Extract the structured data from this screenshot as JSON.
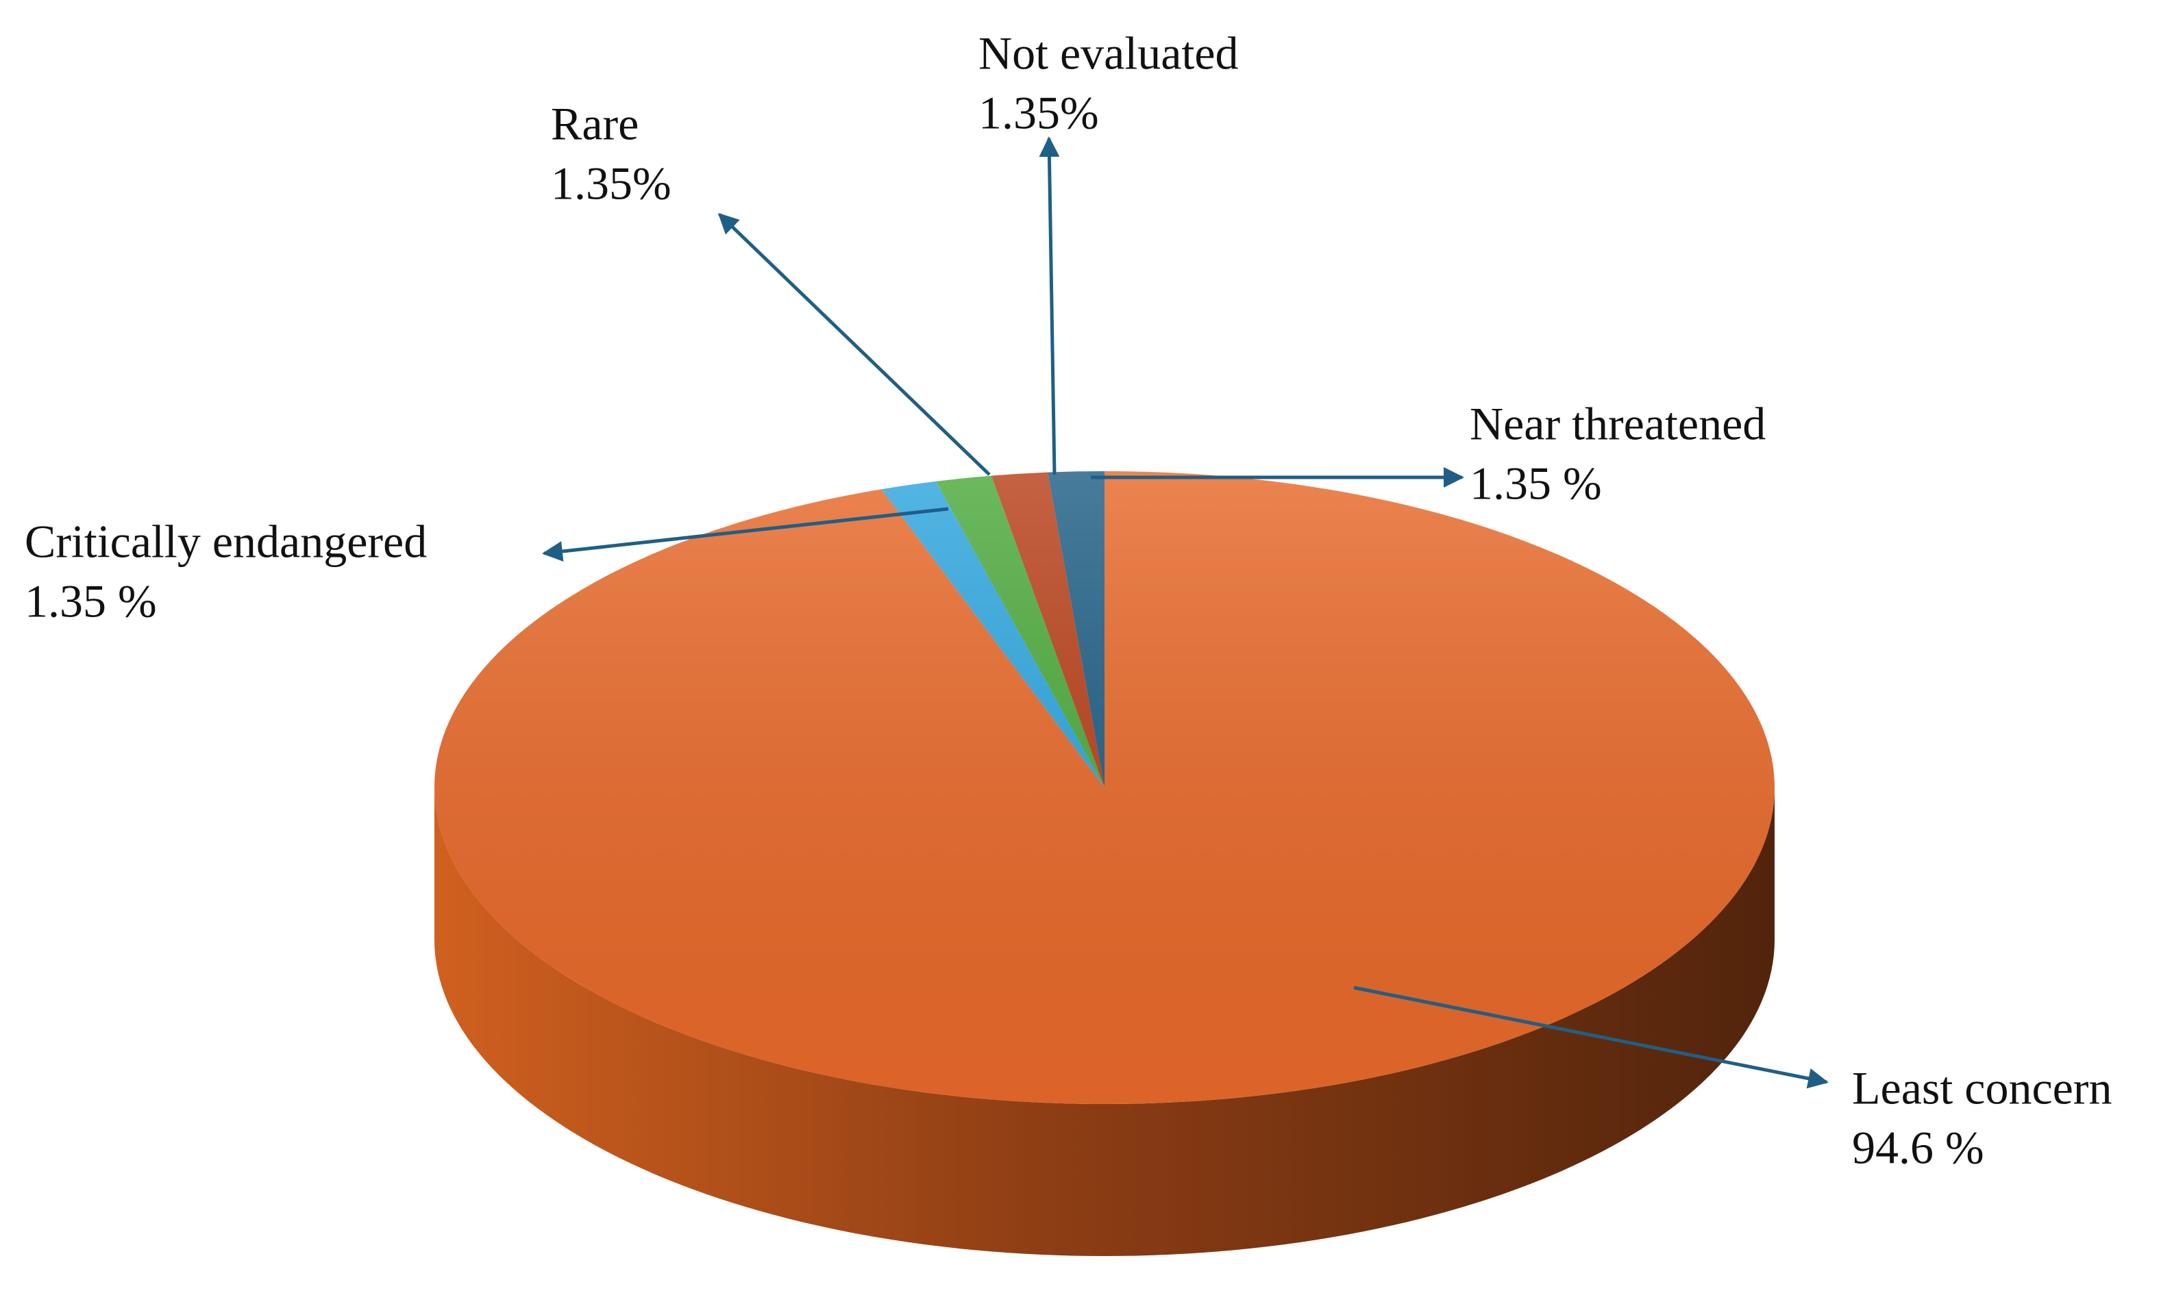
{
  "chart_data": {
    "type": "pie",
    "categories": [
      "Least concern",
      "Critically endangered",
      "Rare",
      "Not evaluated",
      "Near threatened"
    ],
    "values": [
      94.6,
      1.35,
      1.35,
      1.35,
      1.35
    ],
    "value_labels": [
      "94.6 %",
      "1.35 %",
      "1.35%",
      "1.35%",
      "1.35 %"
    ],
    "colors": [
      "#e8692a",
      "#2ea6de",
      "#4caa3c",
      "#b8401a",
      "#1f5f85"
    ]
  }
}
